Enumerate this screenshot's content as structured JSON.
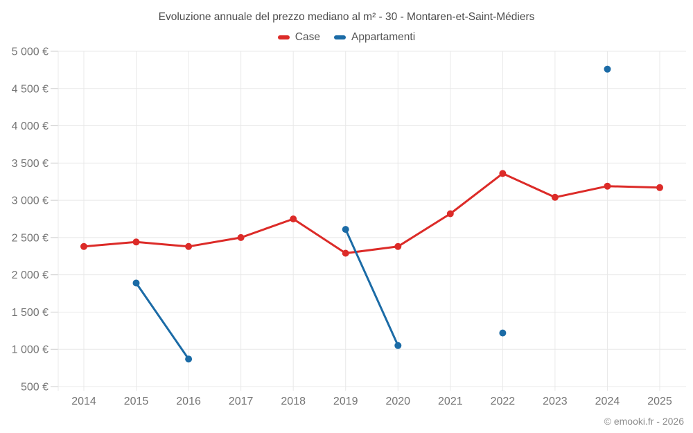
{
  "title": "Evoluzione annuale del prezzo mediano al m² - 30 - Montaren-et-Saint-Médiers",
  "copyright": "© emooki.fr - 2026",
  "colors": {
    "background": "#ffffff",
    "title_text": "#4c4c4c",
    "legend_text": "#555555",
    "axis_text": "#757575",
    "grid": "#e8e8e8",
    "tick": "#cccccc",
    "copyright_text": "#8c8c8c",
    "case_red": "#dc2b28",
    "appartamenti_blue": "#1b6ba6"
  },
  "chart_data": {
    "type": "line",
    "title": "Evoluzione annuale del prezzo mediano al m² - 30 - Montaren-et-Saint-Médiers",
    "xlabel": "",
    "ylabel": "",
    "categories": [
      "2014",
      "2015",
      "2016",
      "2017",
      "2018",
      "2019",
      "2020",
      "2021",
      "2022",
      "2023",
      "2024",
      "2025"
    ],
    "series": [
      {
        "name": "Case",
        "color": "#dc2b28",
        "values": [
          2380,
          2440,
          2380,
          2500,
          2750,
          2290,
          2380,
          2820,
          3360,
          3040,
          3190,
          3170
        ]
      },
      {
        "name": "Appartamenti",
        "color": "#1b6ba6",
        "values": [
          null,
          1890,
          870,
          null,
          null,
          2610,
          1050,
          null,
          1220,
          null,
          4760,
          null
        ]
      }
    ],
    "ylim": [
      500,
      5000
    ],
    "ytick_step": 500,
    "yticks": [
      {
        "value": 500,
        "label": "500 €"
      },
      {
        "value": 1000,
        "label": "1 000 €"
      },
      {
        "value": 1500,
        "label": "1 500 €"
      },
      {
        "value": 2000,
        "label": "2 000 €"
      },
      {
        "value": 2500,
        "label": "2 500 €"
      },
      {
        "value": 3000,
        "label": "3 000 €"
      },
      {
        "value": 3500,
        "label": "3 500 €"
      },
      {
        "value": 4000,
        "label": "4 000 €"
      },
      {
        "value": 4500,
        "label": "4 500 €"
      },
      {
        "value": 5000,
        "label": "5 000 €"
      }
    ],
    "grid": true,
    "legend_position": "top"
  }
}
